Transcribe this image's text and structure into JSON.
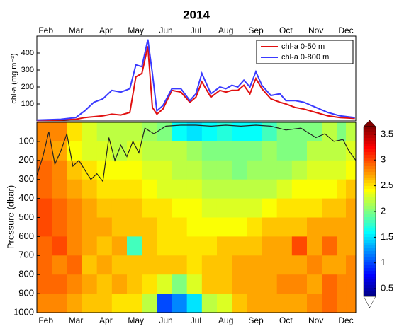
{
  "chart_data": [
    {
      "type": "line",
      "title": "2014",
      "ylabel": "chl-a (mg m⁻³)",
      "xlim": [
        1.7,
        12.33
      ],
      "ylim": [
        0,
        500
      ],
      "yticks": [
        100,
        200,
        300,
        400
      ],
      "xticks": [
        {
          "value": 2,
          "label": "Feb"
        },
        {
          "value": 3,
          "label": "Mar"
        },
        {
          "value": 4,
          "label": "Apr"
        },
        {
          "value": 5,
          "label": "May"
        },
        {
          "value": 6,
          "label": "Jun"
        },
        {
          "value": 7,
          "label": "Jul"
        },
        {
          "value": 8,
          "label": "Aug"
        },
        {
          "value": 9,
          "label": "Sep"
        },
        {
          "value": 10,
          "label": "Oct"
        },
        {
          "value": 11,
          "label": "Nov"
        },
        {
          "value": 12,
          "label": "Dec"
        }
      ],
      "legend": "upper right",
      "x": [
        1.7,
        2.5,
        3.0,
        3.3,
        3.6,
        3.9,
        4.2,
        4.5,
        4.8,
        5.0,
        5.2,
        5.4,
        5.55,
        5.7,
        5.9,
        6.2,
        6.5,
        6.8,
        7.0,
        7.2,
        7.5,
        7.8,
        8.0,
        8.2,
        8.4,
        8.6,
        8.8,
        9.0,
        9.2,
        9.5,
        9.8,
        10.0,
        10.3,
        10.6,
        11.0,
        11.4,
        11.8,
        12.3
      ],
      "series": [
        {
          "name": "chl-a 0-50 m",
          "color": "#e01010",
          "values": [
            3,
            5,
            10,
            20,
            25,
            30,
            40,
            35,
            50,
            260,
            280,
            440,
            80,
            40,
            70,
            180,
            170,
            110,
            140,
            230,
            140,
            180,
            170,
            180,
            180,
            210,
            160,
            250,
            190,
            130,
            110,
            100,
            80,
            70,
            50,
            30,
            20,
            15
          ]
        },
        {
          "name": "chl-a 0-800 m",
          "color": "#3a3aff",
          "values": [
            5,
            10,
            20,
            60,
            110,
            130,
            180,
            170,
            190,
            330,
            320,
            480,
            280,
            60,
            90,
            190,
            190,
            120,
            160,
            280,
            160,
            200,
            190,
            210,
            200,
            240,
            200,
            290,
            210,
            150,
            160,
            120,
            120,
            110,
            80,
            50,
            30,
            20
          ]
        }
      ]
    },
    {
      "type": "heatmap",
      "ylabel": "Pressure (dbar)",
      "colormap": "jet",
      "xlim": [
        1.7,
        12.33
      ],
      "ylim": [
        1000,
        0
      ],
      "yticks": [
        100,
        200,
        300,
        400,
        500,
        600,
        700,
        800,
        900,
        1000
      ],
      "xticks": [
        {
          "value": 2,
          "label": "Feb"
        },
        {
          "value": 3,
          "label": "Mar"
        },
        {
          "value": 4,
          "label": "Apr"
        },
        {
          "value": 5,
          "label": "May"
        },
        {
          "value": 6,
          "label": "Jun"
        },
        {
          "value": 7,
          "label": "Jul"
        },
        {
          "value": 8,
          "label": "Aug"
        },
        {
          "value": 9,
          "label": "Sep"
        },
        {
          "value": 10,
          "label": "Oct"
        },
        {
          "value": 11,
          "label": "Nov"
        },
        {
          "value": 12,
          "label": "Dec"
        }
      ],
      "xbins": [
        1.7,
        2.2,
        2.7,
        3.2,
        3.7,
        4.2,
        4.7,
        5.2,
        5.7,
        6.2,
        6.7,
        7.2,
        7.7,
        8.2,
        8.7,
        9.2,
        9.7,
        10.2,
        10.7,
        11.2,
        11.7,
        12.0,
        12.33
      ],
      "ybins": [
        0,
        100,
        200,
        300,
        400,
        500,
        600,
        700,
        800,
        900,
        1000
      ],
      "z": [
        [
          2.8,
          2.8,
          2.5,
          2.3,
          2.2,
          2.2,
          2.2,
          2.1,
          2.0,
          1.6,
          1.5,
          1.6,
          1.7,
          1.6,
          1.6,
          1.8,
          2.0,
          2.0,
          2.0,
          2.2,
          2.0,
          2.2
        ],
        [
          2.8,
          2.7,
          2.4,
          2.3,
          2.3,
          2.2,
          2.3,
          2.2,
          2.2,
          2.2,
          2.1,
          2.0,
          2.0,
          2.0,
          2.0,
          2.1,
          2.0,
          2.0,
          2.2,
          2.2,
          2.2,
          2.3
        ],
        [
          2.9,
          2.8,
          2.6,
          2.5,
          2.4,
          2.4,
          2.4,
          2.3,
          2.3,
          2.2,
          2.2,
          2.1,
          2.1,
          2.0,
          2.1,
          2.1,
          2.1,
          2.2,
          2.3,
          2.3,
          2.3,
          2.4
        ],
        [
          2.9,
          2.8,
          2.7,
          2.6,
          2.5,
          2.5,
          2.5,
          2.4,
          2.3,
          2.3,
          2.3,
          2.2,
          2.2,
          2.2,
          2.2,
          2.2,
          2.3,
          2.4,
          2.4,
          2.4,
          2.5,
          2.6
        ],
        [
          3.0,
          2.9,
          2.8,
          2.7,
          2.6,
          2.6,
          2.6,
          2.5,
          2.5,
          2.4,
          2.4,
          2.3,
          2.3,
          2.3,
          2.3,
          2.4,
          2.5,
          2.5,
          2.5,
          2.6,
          2.6,
          2.7
        ],
        [
          3.0,
          2.9,
          2.8,
          2.7,
          2.7,
          2.6,
          2.6,
          2.6,
          2.5,
          2.5,
          2.4,
          2.4,
          2.4,
          2.4,
          2.5,
          2.6,
          2.6,
          2.6,
          2.7,
          2.7,
          2.7,
          2.7
        ],
        [
          2.9,
          3.0,
          2.8,
          2.7,
          2.6,
          2.7,
          1.8,
          2.6,
          2.5,
          2.5,
          2.5,
          2.5,
          2.6,
          2.6,
          2.6,
          2.7,
          2.7,
          3.0,
          2.7,
          2.9,
          2.7,
          2.7
        ],
        [
          2.9,
          2.8,
          2.9,
          2.6,
          2.7,
          2.6,
          2.6,
          2.6,
          2.6,
          2.6,
          2.5,
          2.6,
          2.6,
          2.7,
          2.7,
          2.7,
          2.7,
          2.7,
          2.8,
          2.7,
          2.7,
          2.8
        ],
        [
          2.9,
          2.9,
          2.8,
          2.7,
          2.6,
          2.7,
          2.6,
          2.5,
          2.3,
          2.0,
          2.3,
          2.6,
          2.6,
          2.7,
          2.7,
          2.7,
          2.8,
          2.8,
          2.7,
          2.9,
          2.8,
          2.8
        ],
        [
          2.8,
          2.8,
          2.7,
          2.6,
          2.6,
          2.5,
          2.5,
          2.2,
          1.0,
          1.2,
          1.5,
          2.2,
          2.3,
          2.6,
          2.7,
          2.7,
          2.7,
          2.7,
          2.8,
          2.9,
          2.8,
          2.8
        ]
      ],
      "clim": [
        0.35,
        3.65
      ],
      "cticks": [
        0.5,
        1,
        1.5,
        2,
        2.5,
        3,
        3.5
      ],
      "line": {
        "color": "#222222",
        "x": [
          1.7,
          1.9,
          2.1,
          2.3,
          2.5,
          2.7,
          2.9,
          3.1,
          3.3,
          3.5,
          3.7,
          3.9,
          4.1,
          4.3,
          4.5,
          4.7,
          4.9,
          5.1,
          5.3,
          5.6,
          6.0,
          6.5,
          7.0,
          7.5,
          8.0,
          8.5,
          9.0,
          9.5,
          10.0,
          10.5,
          11.0,
          11.3,
          11.6,
          11.9,
          12.1,
          12.33
        ],
        "values": [
          280,
          180,
          50,
          220,
          150,
          60,
          230,
          200,
          250,
          300,
          270,
          310,
          80,
          200,
          120,
          180,
          100,
          160,
          30,
          60,
          20,
          15,
          15,
          20,
          15,
          20,
          15,
          20,
          40,
          30,
          80,
          60,
          100,
          90,
          150,
          200
        ]
      }
    }
  ]
}
